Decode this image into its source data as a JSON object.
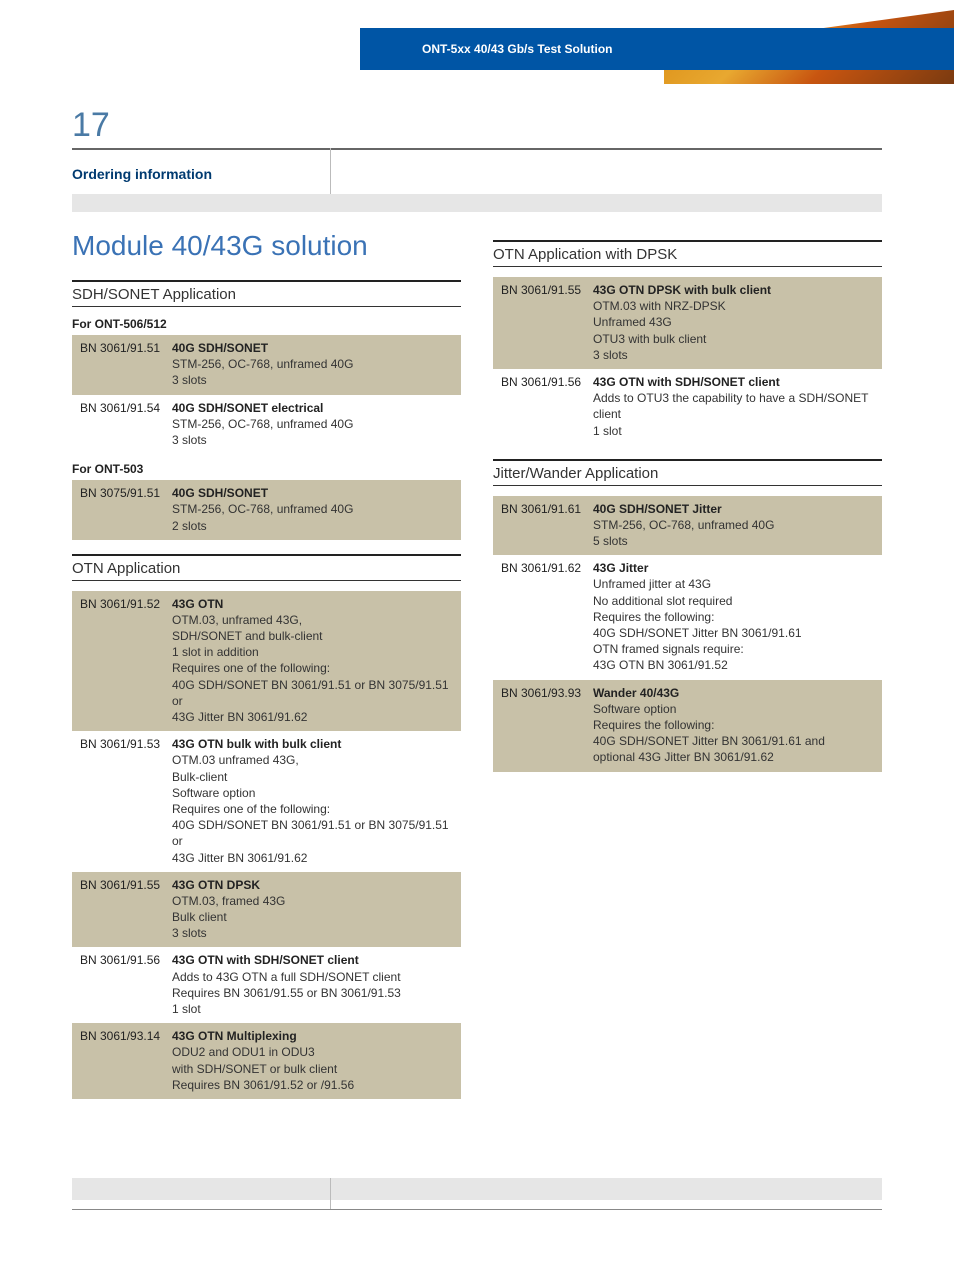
{
  "header": {
    "title": "ONT-5xx 40/43 Gb/s Test Solution"
  },
  "page_number": "17",
  "section_label": "Ordering information",
  "module_title": "Module 40/43G solution",
  "colors": {
    "header_bg": "#0055a5",
    "accent_text": "#003a70",
    "title_text": "#3a72b5",
    "row_shade": "#c8c1a8",
    "gray_band": "#e6e6e6"
  },
  "left": {
    "sdh": {
      "heading": "SDH/SONET Application",
      "group1_label": "For ONT-506/512",
      "group1": [
        {
          "code": "BN 3061/91.51",
          "title": "40G SDH/SONET",
          "desc": "STM-256, OC-768, unframed 40G\n3 slots",
          "shaded": true
        },
        {
          "code": "BN 3061/91.54",
          "title": "40G SDH/SONET electrical",
          "desc": "STM-256, OC-768, unframed 40G\n3 slots",
          "shaded": false
        }
      ],
      "group2_label": "For ONT-503",
      "group2": [
        {
          "code": "BN 3075/91.51",
          "title": "40G SDH/SONET",
          "desc": "STM-256, OC-768, unframed 40G\n2 slots",
          "shaded": true
        }
      ]
    },
    "otn": {
      "heading": "OTN Application",
      "items": [
        {
          "code": "BN 3061/91.52",
          "title": "43G OTN",
          "desc": "OTM.03, unframed 43G,\nSDH/SONET and bulk-client\n1 slot in addition\nRequires one of the following:\n40G SDH/SONET BN 3061/91.51 or BN 3075/91.51 or\n43G Jitter BN 3061/91.62",
          "shaded": true
        },
        {
          "code": "BN 3061/91.53",
          "title": "43G OTN bulk with bulk client",
          "desc": "OTM.03 unframed 43G,\nBulk-client\nSoftware option\nRequires one of the following:\n40G SDH/SONET BN 3061/91.51 or BN 3075/91.51 or\n43G Jitter BN 3061/91.62",
          "shaded": false
        },
        {
          "code": "BN 3061/91.55",
          "title": "43G OTN DPSK",
          "desc": "OTM.03, framed 43G\nBulk client\n3 slots",
          "shaded": true
        },
        {
          "code": "BN 3061/91.56",
          "title": "43G OTN with SDH/SONET client",
          "desc": "Adds to 43G OTN a full SDH/SONET client\nRequires BN 3061/91.55 or BN 3061/91.53\n1 slot",
          "shaded": false
        },
        {
          "code": "BN 3061/93.14",
          "title": "43G OTN Multiplexing",
          "desc": "ODU2 and ODU1 in ODU3\nwith SDH/SONET or bulk client\nRequires BN 3061/91.52 or /91.56",
          "shaded": true
        }
      ]
    }
  },
  "right": {
    "dpsk": {
      "heading": "OTN Application with DPSK",
      "items": [
        {
          "code": "BN 3061/91.55",
          "title": "43G OTN DPSK with bulk client",
          "desc": "OTM.03 with NRZ-DPSK\nUnframed 43G\nOTU3 with bulk client\n3 slots",
          "shaded": true
        },
        {
          "code": "BN 3061/91.56",
          "title": "43G OTN with SDH/SONET client",
          "desc": "Adds to OTU3 the capability to have a SDH/SONET\nclient\n1 slot",
          "shaded": false
        }
      ]
    },
    "jitter": {
      "heading": "Jitter/Wander Application",
      "items": [
        {
          "code": "BN 3061/91.61",
          "title": "40G SDH/SONET Jitter",
          "desc": "STM-256, OC-768, unframed 40G\n5 slots",
          "shaded": true
        },
        {
          "code": "BN 3061/91.62",
          "title": "43G Jitter",
          "desc": "Unframed jitter at 43G\nNo additional slot required\nRequires the following:\n40G SDH/SONET Jitter BN 3061/91.61\nOTN framed signals require:\n43G OTN BN 3061/91.52",
          "shaded": false
        },
        {
          "code": "BN 3061/93.93",
          "title": "Wander 40/43G",
          "desc": "Software option\nRequires the following:\n40G SDH/SONET Jitter BN 3061/91.61 and\noptional 43G Jitter BN 3061/91.62",
          "shaded": true
        }
      ]
    }
  }
}
